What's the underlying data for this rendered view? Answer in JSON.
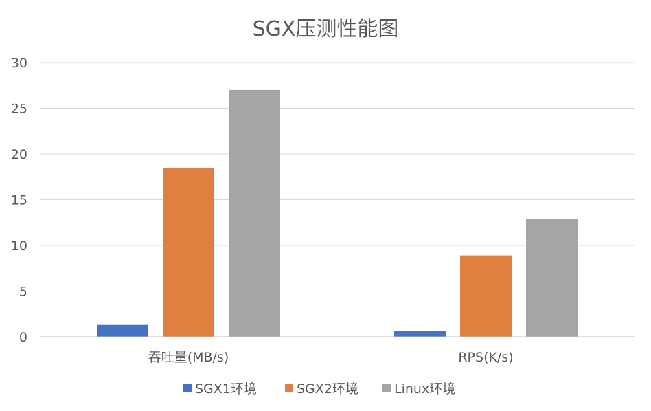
{
  "chart_data": {
    "type": "bar",
    "title": "SGX压测性能图",
    "categories": [
      "吞吐量(MB/s)",
      "RPS(K/s)"
    ],
    "series": [
      {
        "name": "SGX1环境",
        "color": "#4472c4",
        "values": [
          1.3,
          0.6
        ]
      },
      {
        "name": "SGX2环境",
        "color": "#e08040",
        "values": [
          18.5,
          8.9
        ]
      },
      {
        "name": "Linux环境",
        "color": "#a5a5a5",
        "values": [
          27,
          12.9
        ]
      }
    ],
    "ylim": [
      0,
      30
    ],
    "yticks": [
      0,
      5,
      10,
      15,
      20,
      25,
      30
    ],
    "grid": true,
    "legend_position": "bottom"
  }
}
